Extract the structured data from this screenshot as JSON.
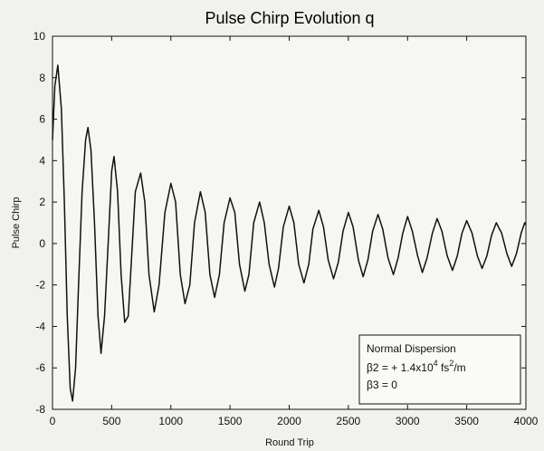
{
  "chart_data": {
    "type": "line",
    "title": "Pulse Chirp  Evolution  q",
    "xlabel": "Round  Trip",
    "ylabel": "Pulse  Chirp",
    "xlim": [
      0,
      4000
    ],
    "ylim": [
      -8,
      10
    ],
    "xticks": [
      0,
      500,
      1000,
      1500,
      2000,
      2500,
      3000,
      3500,
      4000
    ],
    "yticks": [
      -8,
      -6,
      -4,
      -2,
      0,
      2,
      4,
      6,
      8,
      10
    ],
    "grid": false,
    "legend_position": "bottom-right",
    "line_color": "#111111",
    "annotation": {
      "line1": "Normal Dispersion",
      "line2_prefix": "β2 = + 1.4x10",
      "line2_exp": "4",
      "line2_mid": " fs",
      "line2_exp2": "2",
      "line2_suffix": "/m",
      "line3": "β3 = 0"
    },
    "series": [
      {
        "points": [
          [
            0,
            5.0
          ],
          [
            20,
            7.6
          ],
          [
            45,
            8.6
          ],
          [
            75,
            6.5
          ],
          [
            100,
            2.0
          ],
          [
            125,
            -3.5
          ],
          [
            150,
            -7.0
          ],
          [
            170,
            -7.6
          ],
          [
            195,
            -6.0
          ],
          [
            220,
            -2.0
          ],
          [
            250,
            2.5
          ],
          [
            280,
            5.0
          ],
          [
            300,
            5.6
          ],
          [
            325,
            4.5
          ],
          [
            355,
            1.0
          ],
          [
            385,
            -3.5
          ],
          [
            410,
            -5.3
          ],
          [
            440,
            -3.5
          ],
          [
            470,
            0.0
          ],
          [
            500,
            3.5
          ],
          [
            520,
            4.2
          ],
          [
            550,
            2.5
          ],
          [
            580,
            -1.5
          ],
          [
            610,
            -3.8
          ],
          [
            640,
            -3.5
          ],
          [
            670,
            -0.5
          ],
          [
            700,
            2.5
          ],
          [
            745,
            3.4
          ],
          [
            780,
            2.0
          ],
          [
            815,
            -1.5
          ],
          [
            860,
            -3.3
          ],
          [
            900,
            -2.0
          ],
          [
            950,
            1.5
          ],
          [
            1000,
            2.9
          ],
          [
            1040,
            2.0
          ],
          [
            1080,
            -1.5
          ],
          [
            1120,
            -2.9
          ],
          [
            1160,
            -2.0
          ],
          [
            1200,
            1.0
          ],
          [
            1250,
            2.5
          ],
          [
            1290,
            1.5
          ],
          [
            1330,
            -1.5
          ],
          [
            1370,
            -2.6
          ],
          [
            1410,
            -1.5
          ],
          [
            1450,
            1.0
          ],
          [
            1500,
            2.2
          ],
          [
            1540,
            1.5
          ],
          [
            1580,
            -1.0
          ],
          [
            1625,
            -2.3
          ],
          [
            1660,
            -1.5
          ],
          [
            1700,
            1.0
          ],
          [
            1750,
            2.0
          ],
          [
            1790,
            1.0
          ],
          [
            1830,
            -1.0
          ],
          [
            1875,
            -2.1
          ],
          [
            1910,
            -1.2
          ],
          [
            1950,
            0.8
          ],
          [
            2000,
            1.8
          ],
          [
            2040,
            1.0
          ],
          [
            2080,
            -1.0
          ],
          [
            2125,
            -1.9
          ],
          [
            2165,
            -1.0
          ],
          [
            2200,
            0.7
          ],
          [
            2250,
            1.6
          ],
          [
            2290,
            0.8
          ],
          [
            2330,
            -0.8
          ],
          [
            2375,
            -1.7
          ],
          [
            2415,
            -0.9
          ],
          [
            2455,
            0.6
          ],
          [
            2500,
            1.5
          ],
          [
            2540,
            0.8
          ],
          [
            2585,
            -0.8
          ],
          [
            2625,
            -1.6
          ],
          [
            2665,
            -0.8
          ],
          [
            2705,
            0.6
          ],
          [
            2750,
            1.4
          ],
          [
            2790,
            0.7
          ],
          [
            2835,
            -0.7
          ],
          [
            2880,
            -1.5
          ],
          [
            2920,
            -0.7
          ],
          [
            2960,
            0.5
          ],
          [
            3000,
            1.3
          ],
          [
            3040,
            0.6
          ],
          [
            3085,
            -0.6
          ],
          [
            3125,
            -1.4
          ],
          [
            3165,
            -0.7
          ],
          [
            3210,
            0.5
          ],
          [
            3250,
            1.2
          ],
          [
            3290,
            0.6
          ],
          [
            3335,
            -0.6
          ],
          [
            3380,
            -1.3
          ],
          [
            3420,
            -0.6
          ],
          [
            3460,
            0.5
          ],
          [
            3500,
            1.1
          ],
          [
            3545,
            0.5
          ],
          [
            3590,
            -0.6
          ],
          [
            3630,
            -1.2
          ],
          [
            3670,
            -0.6
          ],
          [
            3710,
            0.4
          ],
          [
            3750,
            1.0
          ],
          [
            3795,
            0.5
          ],
          [
            3840,
            -0.5
          ],
          [
            3880,
            -1.1
          ],
          [
            3920,
            -0.5
          ],
          [
            3960,
            0.5
          ],
          [
            3990,
            1.0
          ],
          [
            4000,
            0.9
          ]
        ]
      }
    ]
  }
}
